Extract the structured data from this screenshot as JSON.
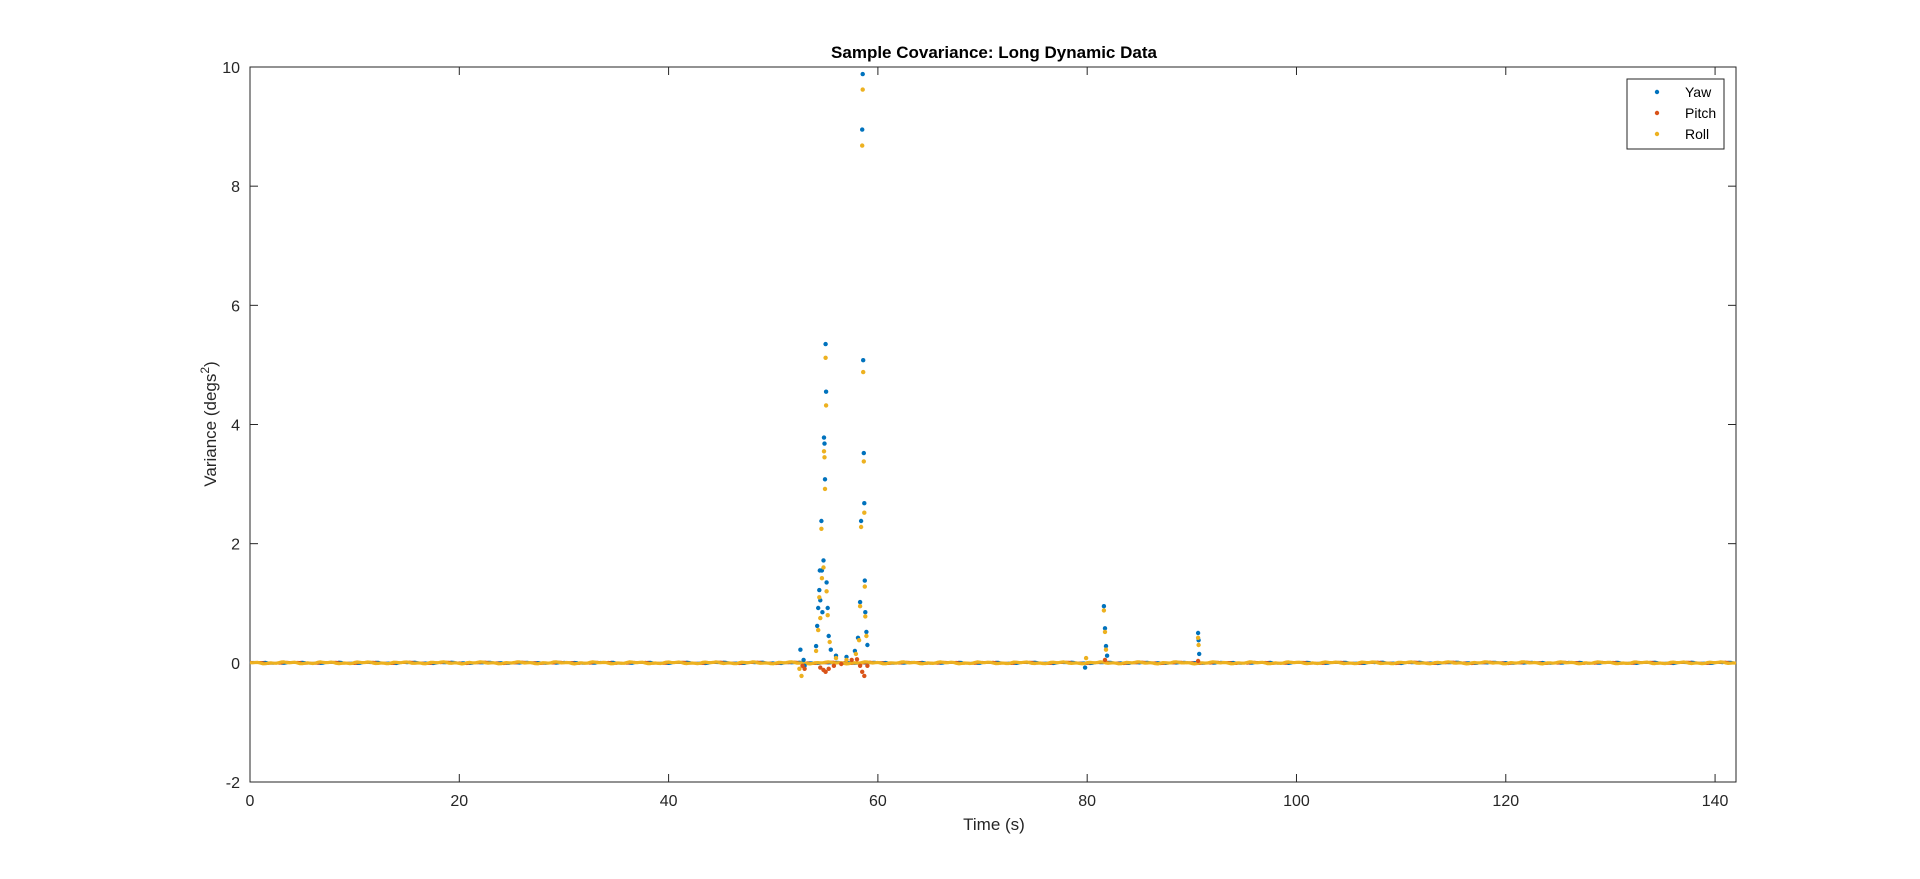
{
  "chart_data": {
    "type": "scatter",
    "title": "Sample Covariance: Long Dynamic Data",
    "xlabel": "Time (s)",
    "ylabel_main": "Variance (degs",
    "ylabel_sup": "2",
    "ylabel_end": ")",
    "xlim": [
      0,
      142
    ],
    "ylim": [
      -2,
      10
    ],
    "xticks": [
      0,
      20,
      40,
      60,
      80,
      100,
      120,
      140
    ],
    "yticks": [
      -2,
      0,
      2,
      4,
      6,
      8,
      10
    ],
    "legend_location": "top-right",
    "series": [
      {
        "name": "Yaw",
        "color": "#0072BD",
        "points": [
          [
            52.6,
            0.22
          ],
          [
            52.9,
            0.05
          ],
          [
            53.0,
            -0.05
          ],
          [
            54.1,
            0.28
          ],
          [
            54.2,
            0.62
          ],
          [
            54.3,
            0.92
          ],
          [
            54.4,
            1.22
          ],
          [
            54.45,
            1.55
          ],
          [
            54.5,
            1.05
          ],
          [
            54.6,
            2.38
          ],
          [
            54.65,
            1.55
          ],
          [
            54.7,
            0.85
          ],
          [
            54.8,
            1.72
          ],
          [
            54.85,
            3.78
          ],
          [
            54.9,
            3.68
          ],
          [
            54.95,
            3.08
          ],
          [
            55.0,
            5.35
          ],
          [
            55.05,
            4.55
          ],
          [
            55.1,
            1.35
          ],
          [
            55.2,
            0.92
          ],
          [
            55.3,
            0.45
          ],
          [
            55.5,
            0.22
          ],
          [
            56.0,
            0.12
          ],
          [
            57.0,
            0.1
          ],
          [
            57.8,
            0.2
          ],
          [
            58.1,
            0.42
          ],
          [
            58.3,
            1.02
          ],
          [
            58.4,
            2.38
          ],
          [
            58.5,
            8.95
          ],
          [
            58.55,
            9.88
          ],
          [
            58.6,
            5.08
          ],
          [
            58.65,
            3.52
          ],
          [
            58.7,
            2.68
          ],
          [
            58.75,
            1.38
          ],
          [
            58.8,
            0.85
          ],
          [
            58.9,
            0.52
          ],
          [
            59.0,
            0.3
          ],
          [
            79.8,
            -0.08
          ],
          [
            81.6,
            0.95
          ],
          [
            81.7,
            0.58
          ],
          [
            81.8,
            0.28
          ],
          [
            81.9,
            0.12
          ],
          [
            90.6,
            0.5
          ],
          [
            90.65,
            0.38
          ],
          [
            90.7,
            0.15
          ]
        ]
      },
      {
        "name": "Pitch",
        "color": "#D95319",
        "points": [
          [
            52.8,
            -0.05
          ],
          [
            53.0,
            -0.1
          ],
          [
            54.5,
            -0.08
          ],
          [
            54.8,
            -0.12
          ],
          [
            55.0,
            -0.15
          ],
          [
            55.3,
            -0.1
          ],
          [
            55.8,
            -0.05
          ],
          [
            56.5,
            -0.02
          ],
          [
            57.5,
            0.05
          ],
          [
            58.0,
            0.06
          ],
          [
            58.3,
            -0.05
          ],
          [
            58.5,
            -0.15
          ],
          [
            58.7,
            -0.22
          ],
          [
            59.0,
            -0.05
          ],
          [
            81.7,
            0.05
          ],
          [
            90.6,
            0.03
          ]
        ]
      },
      {
        "name": "Roll",
        "color": "#EDB120",
        "points": [
          [
            52.5,
            -0.1
          ],
          [
            52.7,
            -0.22
          ],
          [
            54.1,
            0.2
          ],
          [
            54.3,
            0.55
          ],
          [
            54.4,
            1.1
          ],
          [
            54.5,
            0.75
          ],
          [
            54.6,
            2.25
          ],
          [
            54.65,
            1.42
          ],
          [
            54.8,
            1.6
          ],
          [
            54.85,
            3.55
          ],
          [
            54.9,
            3.45
          ],
          [
            54.95,
            2.92
          ],
          [
            55.0,
            5.12
          ],
          [
            55.05,
            4.32
          ],
          [
            55.1,
            1.2
          ],
          [
            55.2,
            0.8
          ],
          [
            55.4,
            0.35
          ],
          [
            56.0,
            0.08
          ],
          [
            57.0,
            0.05
          ],
          [
            57.9,
            0.15
          ],
          [
            58.2,
            0.38
          ],
          [
            58.3,
            0.95
          ],
          [
            58.4,
            2.28
          ],
          [
            58.5,
            8.68
          ],
          [
            58.55,
            9.62
          ],
          [
            58.6,
            4.88
          ],
          [
            58.65,
            3.38
          ],
          [
            58.7,
            2.52
          ],
          [
            58.75,
            1.28
          ],
          [
            58.8,
            0.78
          ],
          [
            58.9,
            0.45
          ],
          [
            79.9,
            0.08
          ],
          [
            81.6,
            0.88
          ],
          [
            81.7,
            0.52
          ],
          [
            81.8,
            0.22
          ],
          [
            90.6,
            0.42
          ],
          [
            90.65,
            0.3
          ]
        ]
      }
    ]
  }
}
